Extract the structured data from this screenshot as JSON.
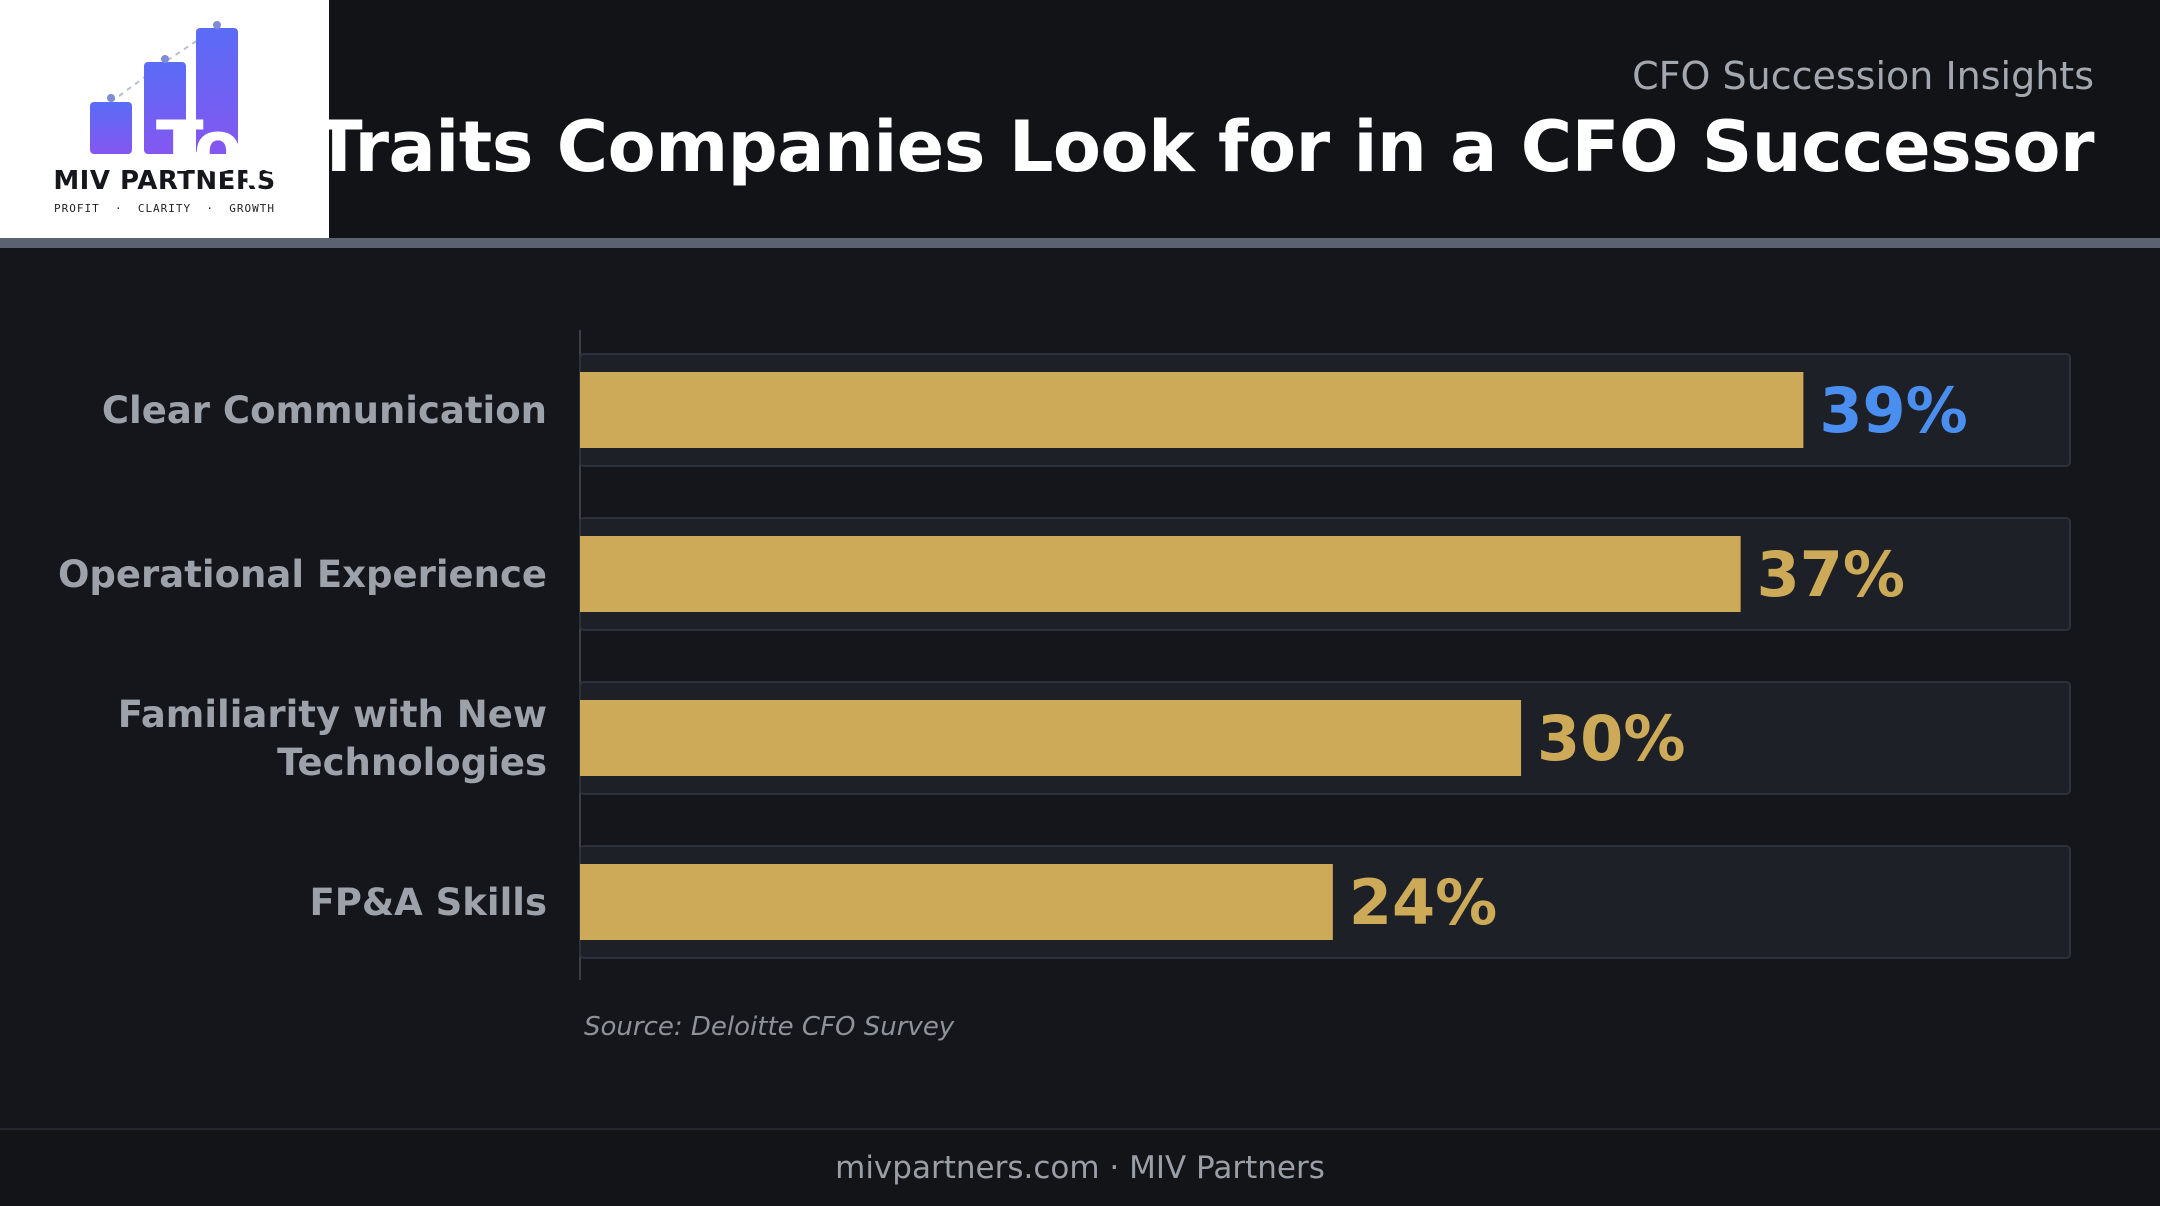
{
  "brand": {
    "name": "MIV PARTNERS",
    "tagline": "PROFIT  ·  CLARITY  ·  GROWTH",
    "logo_colors": [
      "#7b5cf5",
      "#4f6af5"
    ]
  },
  "header": {
    "subtitle": "CFO Succession Insights",
    "title": "Top Traits Companies Look for in a CFO Successor"
  },
  "chart_data": {
    "type": "bar",
    "orientation": "horizontal",
    "categories": [
      [
        "Clear Communication"
      ],
      [
        "Operational Experience"
      ],
      [
        "Familiarity with New",
        "Technologies"
      ],
      [
        "FP&A Skills"
      ]
    ],
    "values": [
      39,
      37,
      30,
      24
    ],
    "value_labels": [
      "39%",
      "37%",
      "30%",
      "24%"
    ],
    "unit": "%",
    "xlim": [
      0,
      47.5
    ],
    "grid": false,
    "legend": "none",
    "bar_color": "#ccaa58",
    "highlight_index": 0,
    "highlight_label_color": "#4a8ff0",
    "label_color": "#ccaa58"
  },
  "source": "Source: Deloitte CFO Survey",
  "footer": {
    "text": "mivpartners.com  ·  MIV Partners"
  }
}
